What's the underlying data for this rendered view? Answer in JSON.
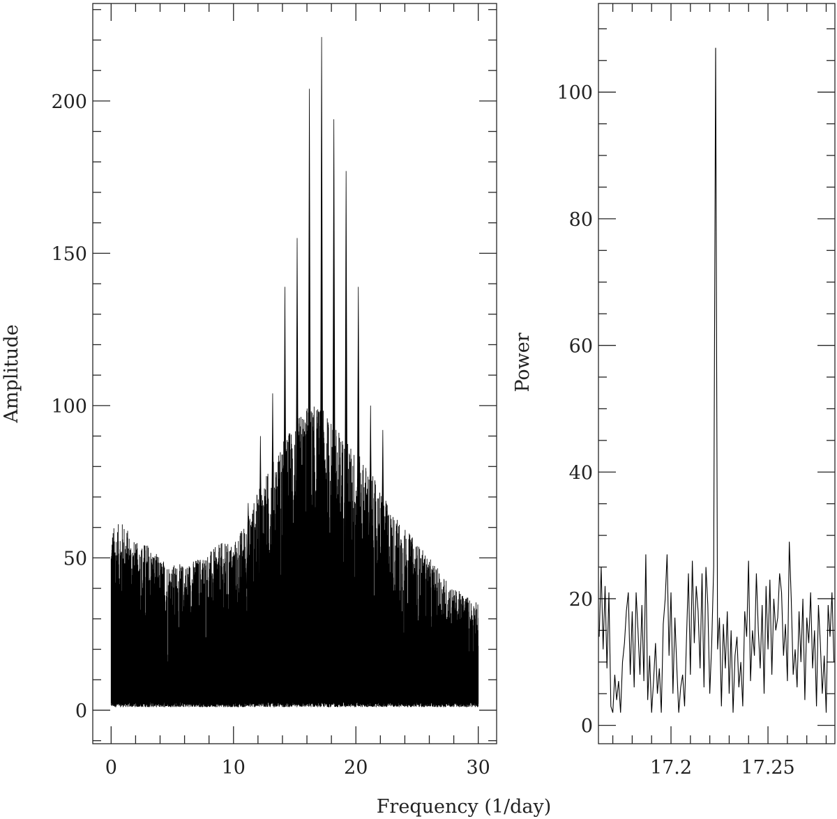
{
  "chart_data": [
    {
      "type": "line",
      "panel": "left",
      "xlabel": "Frequency (1/day)",
      "ylabel": "Amplitude",
      "xlim": [
        -1.5,
        31.5
      ],
      "ylim": [
        -11,
        232
      ],
      "x_ticks": [
        "0",
        "10",
        "20",
        "30"
      ],
      "y_ticks": [
        "0",
        "50",
        "100",
        "150",
        "200"
      ],
      "grid": false,
      "color": "#000000",
      "noise_envelope": {
        "frequency": [
          0,
          1,
          2,
          3,
          4,
          5,
          6,
          7,
          8,
          9,
          10,
          11,
          12,
          13,
          14,
          15,
          16,
          17,
          18,
          19,
          20,
          21,
          22,
          23,
          24,
          25,
          26,
          27,
          28,
          29,
          30
        ],
        "upper_amplitude": [
          60,
          62,
          55,
          55,
          50,
          48,
          48,
          50,
          52,
          55,
          55,
          62,
          72,
          80,
          88,
          95,
          100,
          100,
          95,
          90,
          85,
          80,
          72,
          65,
          60,
          55,
          50,
          45,
          40,
          38,
          35
        ],
        "lower_amplitude": 1
      },
      "peaks": {
        "frequency": [
          11.2,
          12.2,
          13.2,
          14.2,
          15.2,
          16.2,
          17.2,
          18.2,
          19.2,
          20.2,
          21.2,
          22.2
        ],
        "amplitude": [
          68,
          90,
          104,
          139,
          155,
          204,
          221,
          194,
          177,
          139,
          100,
          92
        ]
      }
    },
    {
      "type": "line",
      "panel": "right",
      "xlabel": "Frequency (1/day)",
      "ylabel": "Power",
      "xlim": [
        17.1626,
        17.2845
      ],
      "ylim": [
        -2.9,
        114
      ],
      "x_ticks": [
        "17.2",
        "17.25"
      ],
      "y_ticks": [
        "0",
        "20",
        "40",
        "60",
        "80",
        "100"
      ],
      "grid": false,
      "color": "#000000",
      "frequency_start": 17.163,
      "frequency_step": 0.001,
      "power": [
        14,
        25,
        12,
        22,
        9,
        21,
        3,
        2,
        8,
        4,
        7,
        2,
        10,
        13,
        18,
        21,
        8,
        18,
        6,
        21,
        15,
        8,
        19,
        7,
        27,
        4,
        11,
        2,
        7,
        13,
        5,
        9,
        2,
        16,
        20,
        27,
        11,
        21,
        5,
        17,
        9,
        2,
        6,
        8,
        3,
        14,
        24,
        8,
        26,
        13,
        22,
        18,
        9,
        24,
        6,
        25,
        19,
        5,
        13,
        25,
        107,
        12,
        17,
        3,
        16,
        9,
        18,
        5,
        15,
        2,
        11,
        14,
        6,
        10,
        3,
        18,
        14,
        26,
        7,
        15,
        11,
        24,
        15,
        9,
        19,
        5,
        22,
        12,
        23,
        8,
        20,
        15,
        17,
        24,
        21,
        11,
        16,
        7,
        29,
        20,
        8,
        12,
        6,
        18,
        10,
        20,
        4,
        17,
        13,
        21,
        9,
        15,
        3,
        19,
        13,
        5,
        11,
        2,
        19,
        14,
        21,
        10
      ]
    }
  ]
}
